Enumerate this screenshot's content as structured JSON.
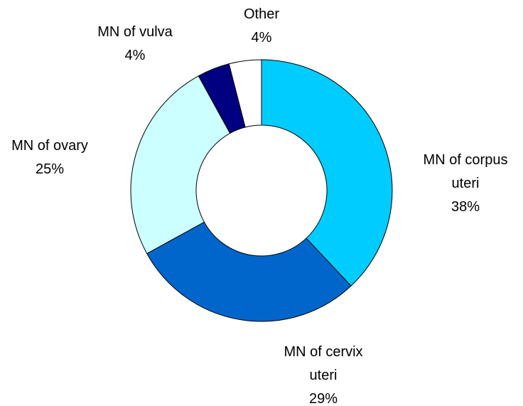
{
  "chart_data": {
    "type": "pie",
    "categories": [
      "MN of corpus uteri",
      "MN of cervix uteri",
      "MN of ovary",
      "MN of vulva",
      "Other"
    ],
    "values": [
      38,
      29,
      25,
      4,
      4
    ],
    "value_labels": [
      "38%",
      "29%",
      "25%",
      "4%",
      "4%"
    ],
    "colors": [
      "#00CCFF",
      "#0066CC",
      "#CCFFFF",
      "#000080",
      "#FFFFFF"
    ],
    "donut": true
  }
}
